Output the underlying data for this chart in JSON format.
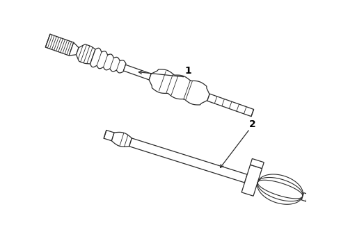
{
  "bg_color": "#ffffff",
  "line_color": "#2a2a2a",
  "label_color": "#000000",
  "fig_width": 4.9,
  "fig_height": 3.6,
  "dpi": 100,
  "label1": "1",
  "label2": "2"
}
